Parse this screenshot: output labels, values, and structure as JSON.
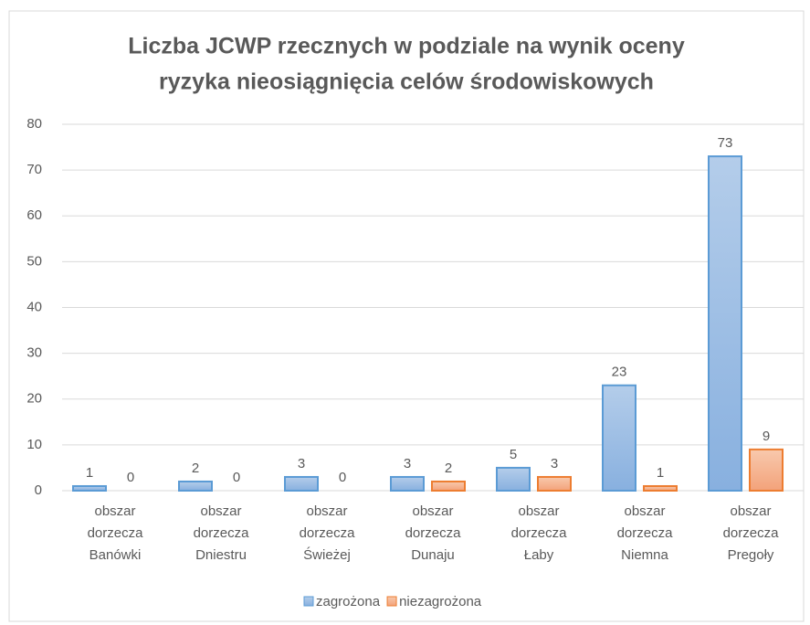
{
  "chart_data": {
    "type": "bar",
    "title": [
      "Liczba JCWP rzecznych w podziale na wynik oceny",
      "ryzyka nieosiągnięcia celów środowiskowych"
    ],
    "categories": [
      "obszar dorzecza Banówki",
      "obszar dorzecza Dniestru",
      "obszar dorzecza Świeżej",
      "obszar dorzecza Dunaju",
      "obszar dorzecza Łaby",
      "obszar dorzecza Niemna",
      "obszar dorzecza Pregoły"
    ],
    "series": [
      {
        "name": "zagrożona",
        "color": "#5b9bd5",
        "values": [
          1,
          2,
          3,
          3,
          5,
          23,
          73
        ]
      },
      {
        "name": "niezagrożona",
        "color": "#ed7d31",
        "values": [
          0,
          0,
          0,
          2,
          3,
          1,
          9
        ]
      }
    ],
    "ylim": [
      0,
      80
    ],
    "yticks": [
      0,
      10,
      20,
      30,
      40,
      50,
      60,
      70,
      80
    ],
    "grid": true,
    "legend": "bottom"
  }
}
